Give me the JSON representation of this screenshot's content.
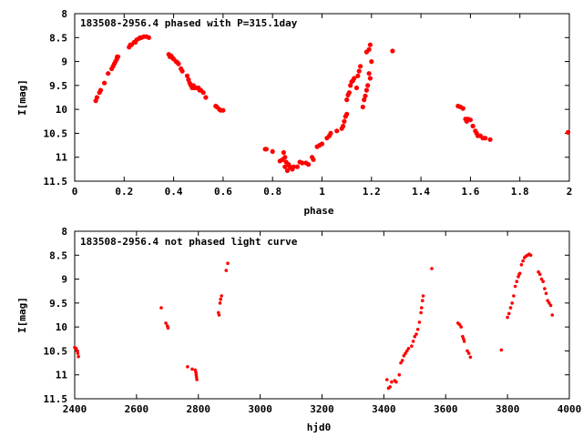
{
  "chart_data": [
    {
      "type": "scatter",
      "title": "183508-2956.4 phased with P=315.1day",
      "xlabel": "phase",
      "ylabel": "I[mag]",
      "xlim": [
        0,
        2
      ],
      "ylim": [
        11.5,
        8
      ],
      "y_inverted": true,
      "xticks": [
        "0",
        "0.2",
        "0.4",
        "0.6",
        "0.8",
        "1",
        "1.2",
        "1.4",
        "1.6",
        "1.8",
        "2"
      ],
      "yticks": [
        "8",
        "8.5",
        "9",
        "9.5",
        "10",
        "10.5",
        "11",
        "11.5"
      ],
      "grid": false,
      "marker_color": "#ff0000",
      "points": [
        [
          0.085,
          9.82
        ],
        [
          0.09,
          9.75
        ],
        [
          0.1,
          9.65
        ],
        [
          0.105,
          9.6
        ],
        [
          0.12,
          9.45
        ],
        [
          0.135,
          9.25
        ],
        [
          0.15,
          9.15
        ],
        [
          0.155,
          9.1
        ],
        [
          0.16,
          9.05
        ],
        [
          0.165,
          9.0
        ],
        [
          0.17,
          8.95
        ],
        [
          0.172,
          8.9
        ],
        [
          0.175,
          8.9
        ],
        [
          0.22,
          8.7
        ],
        [
          0.225,
          8.65
        ],
        [
          0.23,
          8.65
        ],
        [
          0.24,
          8.6
        ],
        [
          0.245,
          8.6
        ],
        [
          0.25,
          8.55
        ],
        [
          0.26,
          8.52
        ],
        [
          0.265,
          8.5
        ],
        [
          0.27,
          8.5
        ],
        [
          0.28,
          8.48
        ],
        [
          0.29,
          8.48
        ],
        [
          0.3,
          8.5
        ],
        [
          0.38,
          8.85
        ],
        [
          0.385,
          8.9
        ],
        [
          0.39,
          8.88
        ],
        [
          0.395,
          8.92
        ],
        [
          0.4,
          8.95
        ],
        [
          0.41,
          9.0
        ],
        [
          0.415,
          9.02
        ],
        [
          0.42,
          9.05
        ],
        [
          0.43,
          9.15
        ],
        [
          0.435,
          9.2
        ],
        [
          0.455,
          9.3
        ],
        [
          0.46,
          9.38
        ],
        [
          0.465,
          9.45
        ],
        [
          0.47,
          9.5
        ],
        [
          0.475,
          9.55
        ],
        [
          0.48,
          9.5
        ],
        [
          0.485,
          9.55
        ],
        [
          0.49,
          9.55
        ],
        [
          0.5,
          9.55
        ],
        [
          0.505,
          9.6
        ],
        [
          0.51,
          9.6
        ],
        [
          0.52,
          9.65
        ],
        [
          0.53,
          9.75
        ],
        [
          0.57,
          9.93
        ],
        [
          0.575,
          9.95
        ],
        [
          0.585,
          10.0
        ],
        [
          0.59,
          10.02
        ],
        [
          0.6,
          10.02
        ],
        [
          0.77,
          10.83
        ],
        [
          0.775,
          10.83
        ],
        [
          0.8,
          10.88
        ],
        [
          0.83,
          11.08
        ],
        [
          0.84,
          11.05
        ],
        [
          0.845,
          10.9
        ],
        [
          0.85,
          11.0
        ],
        [
          0.85,
          11.2
        ],
        [
          0.855,
          11.1
        ],
        [
          0.86,
          11.28
        ],
        [
          0.865,
          11.15
        ],
        [
          0.87,
          11.2
        ],
        [
          0.875,
          11.22
        ],
        [
          0.88,
          11.25
        ],
        [
          0.885,
          11.2
        ],
        [
          0.9,
          11.2
        ],
        [
          0.91,
          11.1
        ],
        [
          0.92,
          11.12
        ],
        [
          0.935,
          11.12
        ],
        [
          0.945,
          11.15
        ],
        [
          0.96,
          11.0
        ],
        [
          0.965,
          11.05
        ],
        [
          0.98,
          10.78
        ],
        [
          0.99,
          10.75
        ],
        [
          1.0,
          10.72
        ],
        [
          1.02,
          10.6
        ],
        [
          1.03,
          10.55
        ],
        [
          1.035,
          10.5
        ],
        [
          1.06,
          10.45
        ],
        [
          1.08,
          10.4
        ],
        [
          1.085,
          10.35
        ],
        [
          1.09,
          10.25
        ],
        [
          1.095,
          10.15
        ],
        [
          1.1,
          9.8
        ],
        [
          1.1,
          10.1
        ],
        [
          1.105,
          9.7
        ],
        [
          1.11,
          9.65
        ],
        [
          1.115,
          9.5
        ],
        [
          1.12,
          9.42
        ],
        [
          1.125,
          9.4
        ],
        [
          1.13,
          9.35
        ],
        [
          1.14,
          9.55
        ],
        [
          1.145,
          9.3
        ],
        [
          1.15,
          9.2
        ],
        [
          1.155,
          9.1
        ],
        [
          1.165,
          9.95
        ],
        [
          1.17,
          9.8
        ],
        [
          1.175,
          9.72
        ],
        [
          1.18,
          9.6
        ],
        [
          1.185,
          9.5
        ],
        [
          1.19,
          9.25
        ],
        [
          1.195,
          9.35
        ],
        [
          1.2,
          9.0
        ],
        [
          1.18,
          8.8
        ],
        [
          1.19,
          8.75
        ],
        [
          1.195,
          8.65
        ],
        [
          1.285,
          8.78
        ],
        [
          1.55,
          9.93
        ],
        [
          1.56,
          9.95
        ],
        [
          1.57,
          9.98
        ],
        [
          1.58,
          10.2
        ],
        [
          1.585,
          10.25
        ],
        [
          1.59,
          10.2
        ],
        [
          1.6,
          10.22
        ],
        [
          1.61,
          10.35
        ],
        [
          1.62,
          10.45
        ],
        [
          1.625,
          10.5
        ],
        [
          1.63,
          10.55
        ],
        [
          1.64,
          10.55
        ],
        [
          1.65,
          10.6
        ],
        [
          1.66,
          10.6
        ],
        [
          1.68,
          10.63
        ],
        [
          1.995,
          10.48
        ]
      ]
    },
    {
      "type": "scatter",
      "title": "183508-2956.4 not phased light curve",
      "xlabel": "hjd0",
      "ylabel": "I[mag]",
      "xlim": [
        2400,
        4000
      ],
      "ylim": [
        11.5,
        8
      ],
      "y_inverted": true,
      "xticks": [
        "2400",
        "2600",
        "2800",
        "3000",
        "3200",
        "3400",
        "3600",
        "3800",
        "4000"
      ],
      "yticks": [
        "8",
        "8.5",
        "9",
        "9.5",
        "10",
        "10.5",
        "11",
        "11.5"
      ],
      "grid": false,
      "marker_color": "#ff0000",
      "points": [
        [
          2400,
          10.43
        ],
        [
          2405,
          10.45
        ],
        [
          2408,
          10.5
        ],
        [
          2410,
          10.55
        ],
        [
          2412,
          10.62
        ],
        [
          2680,
          9.6
        ],
        [
          2695,
          9.92
        ],
        [
          2700,
          9.98
        ],
        [
          2702,
          10.02
        ],
        [
          2765,
          10.83
        ],
        [
          2780,
          10.88
        ],
        [
          2790,
          10.9
        ],
        [
          2792,
          10.95
        ],
        [
          2793,
          11.0
        ],
        [
          2794,
          11.05
        ],
        [
          2795,
          11.1
        ],
        [
          2865,
          9.7
        ],
        [
          2867,
          9.75
        ],
        [
          2870,
          9.5
        ],
        [
          2872,
          9.42
        ],
        [
          2875,
          9.35
        ],
        [
          2890,
          8.82
        ],
        [
          2895,
          8.67
        ],
        [
          3410,
          11.1
        ],
        [
          3415,
          11.28
        ],
        [
          3420,
          11.25
        ],
        [
          3425,
          11.15
        ],
        [
          3435,
          11.12
        ],
        [
          3440,
          11.15
        ],
        [
          3450,
          11.0
        ],
        [
          3455,
          10.75
        ],
        [
          3460,
          10.7
        ],
        [
          3465,
          10.6
        ],
        [
          3470,
          10.55
        ],
        [
          3475,
          10.5
        ],
        [
          3480,
          10.45
        ],
        [
          3490,
          10.4
        ],
        [
          3495,
          10.3
        ],
        [
          3500,
          10.2
        ],
        [
          3505,
          10.15
        ],
        [
          3510,
          10.05
        ],
        [
          3515,
          9.9
        ],
        [
          3520,
          9.7
        ],
        [
          3522,
          9.6
        ],
        [
          3525,
          9.45
        ],
        [
          3527,
          9.35
        ],
        [
          3555,
          8.78
        ],
        [
          3640,
          9.92
        ],
        [
          3645,
          9.95
        ],
        [
          3650,
          10.0
        ],
        [
          3655,
          10.2
        ],
        [
          3658,
          10.25
        ],
        [
          3660,
          10.3
        ],
        [
          3670,
          10.5
        ],
        [
          3675,
          10.55
        ],
        [
          3680,
          10.63
        ],
        [
          3780,
          10.48
        ],
        [
          3800,
          9.8
        ],
        [
          3805,
          9.72
        ],
        [
          3810,
          9.6
        ],
        [
          3815,
          9.5
        ],
        [
          3820,
          9.35
        ],
        [
          3825,
          9.15
        ],
        [
          3830,
          9.05
        ],
        [
          3835,
          8.95
        ],
        [
          3838,
          8.9
        ],
        [
          3840,
          8.88
        ],
        [
          3845,
          8.7
        ],
        [
          3850,
          8.62
        ],
        [
          3855,
          8.55
        ],
        [
          3860,
          8.52
        ],
        [
          3865,
          8.5
        ],
        [
          3870,
          8.48
        ],
        [
          3875,
          8.5
        ],
        [
          3900,
          8.85
        ],
        [
          3905,
          8.9
        ],
        [
          3910,
          9.0
        ],
        [
          3915,
          9.05
        ],
        [
          3920,
          9.2
        ],
        [
          3925,
          9.3
        ],
        [
          3930,
          9.45
        ],
        [
          3935,
          9.5
        ],
        [
          3940,
          9.55
        ],
        [
          3945,
          9.75
        ]
      ]
    }
  ]
}
